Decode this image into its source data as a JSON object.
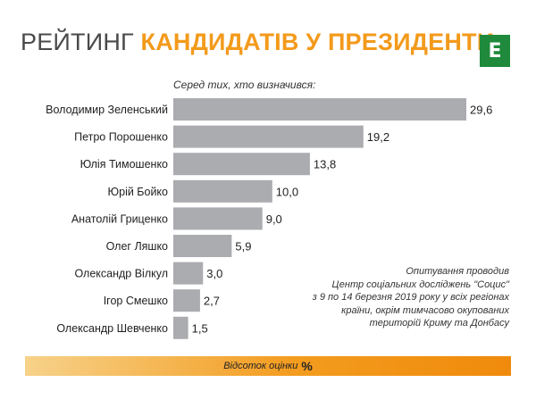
{
  "title": {
    "light": "РЕЙТИНГ",
    "bold": "КАНДИДАТІВ У ПРЕЗИДЕНТИ"
  },
  "logo": {
    "letter": "E",
    "color": "#1f8a3b"
  },
  "subtitle": "Серед тих, хто визначився:",
  "chart_data": {
    "type": "bar",
    "orientation": "horizontal",
    "categories": [
      "Володимир Зеленський",
      "Петро Порошенко",
      "Юлія Тимошенко",
      "Юрій Бойко",
      "Анатолій Гриценко",
      "Олег Ляшко",
      "Олександр Вілкул",
      "Ігор Смешко",
      "Олександр Шевченко"
    ],
    "values": [
      29.6,
      19.2,
      13.8,
      10.0,
      9.0,
      5.9,
      3.0,
      2.7,
      1.5
    ],
    "value_labels": [
      "29,6",
      "19,2",
      "13,8",
      "10,0",
      "9,0",
      "5,9",
      "3,0",
      "2,7",
      "1,5"
    ],
    "bar_color": "#abacb0",
    "xlim": [
      0,
      29.6
    ],
    "grid": false
  },
  "note": {
    "lines": [
      "Опитування проводив",
      "Центр соціальних  досліджень \"Социс\"",
      "з 9 по 14 березня 2019 року у всіх регіонах",
      "країни, окрім тимчасово окупованих",
      "територій Криму та Донбасу"
    ]
  },
  "footer": {
    "text": "Відсоток оцінки",
    "unit": "%"
  },
  "accent_color": "#f39a1b"
}
